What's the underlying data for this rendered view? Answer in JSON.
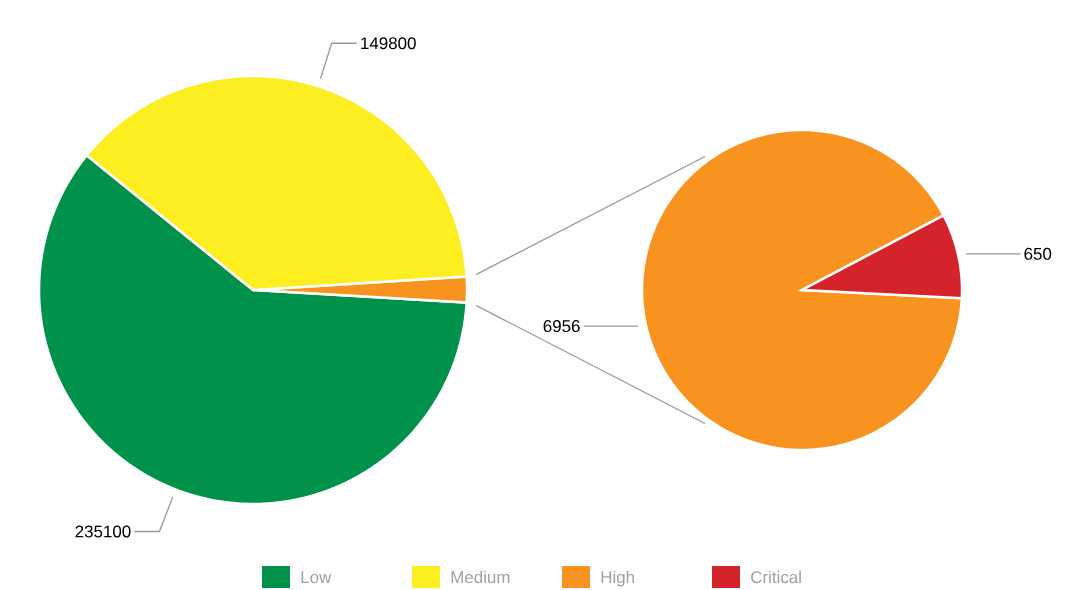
{
  "chart_data": [
    {
      "type": "pie",
      "categories": [
        "Low",
        null,
        "Medium"
      ],
      "values": [
        235100,
        7606,
        149800
      ],
      "colors": [
        "#00924a",
        "#f7931e",
        "#fcee21"
      ],
      "value_labels": [
        "235100",
        null,
        "149800"
      ],
      "legend": "bottom"
    },
    {
      "type": "pie",
      "categories": [
        "High",
        "Critical"
      ],
      "values": [
        6956,
        650
      ],
      "colors": [
        "#f7931e",
        "#d4232a"
      ],
      "value_labels": [
        "6956",
        "650"
      ],
      "legend": "bottom"
    }
  ]
}
